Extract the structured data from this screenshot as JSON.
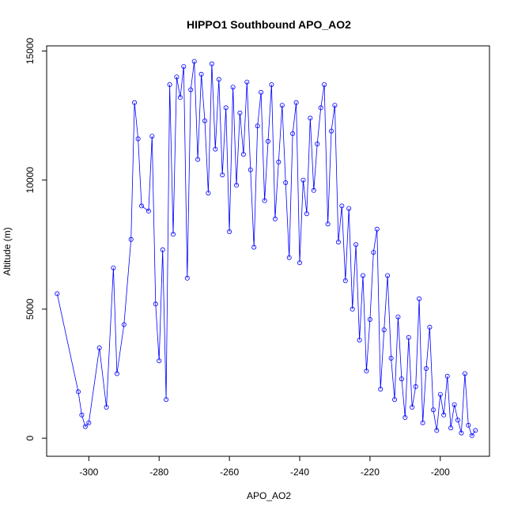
{
  "chart_data": {
    "type": "scatter",
    "title": "HIPPO1 Southbound APO_AO2",
    "xlabel": "APO_AO2",
    "ylabel": "Altitude (m)",
    "xlim": [
      -312,
      -186
    ],
    "ylim": [
      -700,
      15200
    ],
    "x_ticks": [
      -300,
      -280,
      -260,
      -240,
      -220,
      -200
    ],
    "y_ticks": [
      0,
      5000,
      10000,
      15000
    ],
    "grid": false,
    "legend": "none",
    "marker": "open-circle",
    "connected": true,
    "series": [
      {
        "color": "#0000ff",
        "points": [
          [
            -309,
            5600
          ],
          [
            -303,
            1800
          ],
          [
            -302,
            900
          ],
          [
            -301,
            450
          ],
          [
            -300,
            600
          ],
          [
            -297,
            3500
          ],
          [
            -295,
            1200
          ],
          [
            -293,
            6600
          ],
          [
            -292,
            2500
          ],
          [
            -290,
            4400
          ],
          [
            -288,
            7700
          ],
          [
            -287,
            13000
          ],
          [
            -286,
            11600
          ],
          [
            -285,
            9000
          ],
          [
            -283,
            8800
          ],
          [
            -282,
            11700
          ],
          [
            -281,
            5200
          ],
          [
            -280,
            3000
          ],
          [
            -279,
            7300
          ],
          [
            -278,
            1500
          ],
          [
            -277,
            13700
          ],
          [
            -276,
            7900
          ],
          [
            -275,
            14000
          ],
          [
            -274,
            13200
          ],
          [
            -273,
            14400
          ],
          [
            -272,
            6200
          ],
          [
            -271,
            13500
          ],
          [
            -270,
            14600
          ],
          [
            -269,
            10800
          ],
          [
            -268,
            14100
          ],
          [
            -267,
            12300
          ],
          [
            -266,
            9500
          ],
          [
            -265,
            14500
          ],
          [
            -264,
            11200
          ],
          [
            -263,
            13900
          ],
          [
            -262,
            10200
          ],
          [
            -261,
            12800
          ],
          [
            -260,
            8000
          ],
          [
            -259,
            13600
          ],
          [
            -258,
            9800
          ],
          [
            -257,
            12600
          ],
          [
            -256,
            11000
          ],
          [
            -255,
            13800
          ],
          [
            -254,
            10400
          ],
          [
            -253,
            7400
          ],
          [
            -252,
            12100
          ],
          [
            -251,
            13400
          ],
          [
            -250,
            9200
          ],
          [
            -249,
            11500
          ],
          [
            -248,
            13700
          ],
          [
            -247,
            8500
          ],
          [
            -246,
            10700
          ],
          [
            -245,
            12900
          ],
          [
            -244,
            9900
          ],
          [
            -243,
            7000
          ],
          [
            -242,
            11800
          ],
          [
            -241,
            13000
          ],
          [
            -240,
            6800
          ],
          [
            -239,
            10000
          ],
          [
            -238,
            8700
          ],
          [
            -237,
            12400
          ],
          [
            -236,
            9600
          ],
          [
            -235,
            11400
          ],
          [
            -234,
            12800
          ],
          [
            -233,
            13700
          ],
          [
            -232,
            8300
          ],
          [
            -231,
            11900
          ],
          [
            -230,
            12900
          ],
          [
            -229,
            7600
          ],
          [
            -228,
            9000
          ],
          [
            -227,
            6100
          ],
          [
            -226,
            8900
          ],
          [
            -225,
            5000
          ],
          [
            -224,
            7500
          ],
          [
            -223,
            3800
          ],
          [
            -222,
            6300
          ],
          [
            -221,
            2600
          ],
          [
            -220,
            4600
          ],
          [
            -219,
            7200
          ],
          [
            -218,
            8100
          ],
          [
            -217,
            1900
          ],
          [
            -216,
            4200
          ],
          [
            -215,
            6300
          ],
          [
            -214,
            3100
          ],
          [
            -213,
            1500
          ],
          [
            -212,
            4700
          ],
          [
            -211,
            2300
          ],
          [
            -210,
            800
          ],
          [
            -209,
            3900
          ],
          [
            -208,
            1200
          ],
          [
            -207,
            2000
          ],
          [
            -206,
            5400
          ],
          [
            -205,
            600
          ],
          [
            -204,
            2700
          ],
          [
            -203,
            4300
          ],
          [
            -202,
            1100
          ],
          [
            -201,
            300
          ],
          [
            -200,
            1700
          ],
          [
            -199,
            900
          ],
          [
            -198,
            2400
          ],
          [
            -197,
            400
          ],
          [
            -196,
            1300
          ],
          [
            -195,
            700
          ],
          [
            -194,
            200
          ],
          [
            -193,
            2500
          ],
          [
            -192,
            500
          ],
          [
            -191,
            100
          ],
          [
            -190,
            300
          ]
        ]
      }
    ]
  }
}
